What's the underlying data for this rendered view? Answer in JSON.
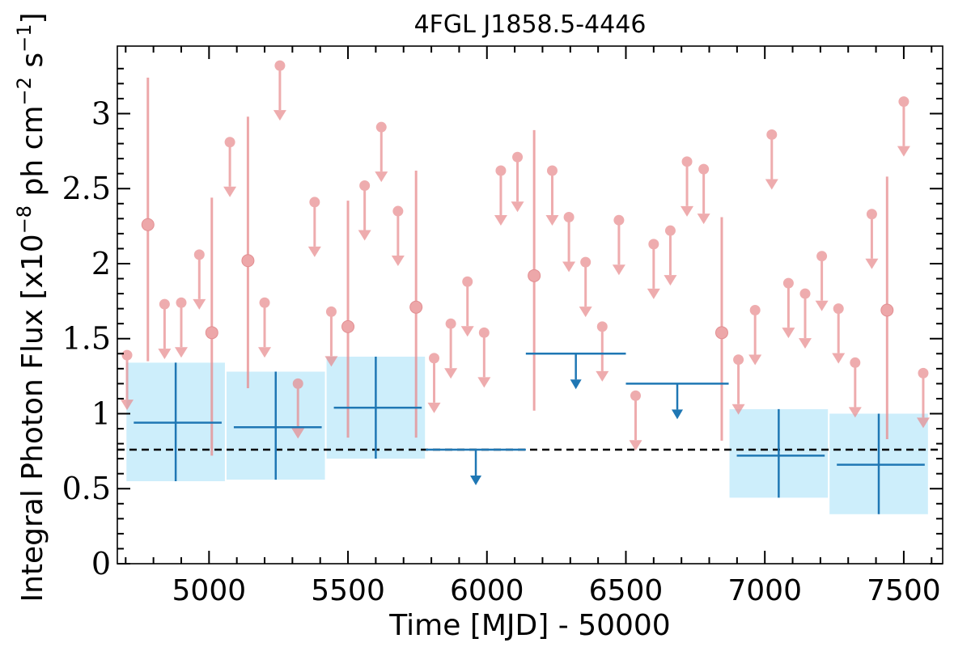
{
  "chart_data": {
    "type": "scatter",
    "title": "4FGL J1858.5-4446",
    "xlabel": "Time [MJD] - 50000",
    "ylabel": "Integral Photon Flux [x10^-8 ph cm^-2 s^-1]",
    "ylabel_parts": {
      "before": "Integral Photon Flux [x10",
      "exp1": "−8",
      "mid": " ph cm",
      "exp2": "−2",
      "mid2": " s",
      "exp3": "−1",
      "after": "]"
    },
    "xlim": [
      4670,
      7640
    ],
    "ylim": [
      0,
      3.45
    ],
    "xticks": [
      {
        "value": 5000,
        "label": "5000"
      },
      {
        "value": 5500,
        "label": "5500"
      },
      {
        "value": 6000,
        "label": "6000"
      },
      {
        "value": 6500,
        "label": "6500"
      },
      {
        "value": 7000,
        "label": "7000"
      },
      {
        "value": 7500,
        "label": "7500"
      }
    ],
    "yticks": [
      {
        "value": 0,
        "label": "0"
      },
      {
        "value": 0.5,
        "label": "0.5"
      },
      {
        "value": 1,
        "label": "1"
      },
      {
        "value": 1.5,
        "label": "1.5"
      },
      {
        "value": 2,
        "label": "2"
      },
      {
        "value": 2.5,
        "label": "2.5"
      },
      {
        "value": 3,
        "label": "3"
      }
    ],
    "grid": false,
    "mean_flux": 0.76,
    "colors": {
      "fine_bins": "#e88a8d",
      "coarse_bins": "#1f77b4",
      "band_fill": "#cdeefb",
      "mean_line": "#000000"
    },
    "fine_bins_detections": [
      {
        "x": 4780,
        "y": 2.26,
        "ylow": 1.35,
        "yhigh": 3.24
      },
      {
        "x": 5010,
        "y": 1.54,
        "ylow": 0.72,
        "yhigh": 2.44
      },
      {
        "x": 5140,
        "y": 2.02,
        "ylow": 1.17,
        "yhigh": 2.98
      },
      {
        "x": 5500,
        "y": 1.58,
        "ylow": 0.84,
        "yhigh": 2.42
      },
      {
        "x": 5745,
        "y": 1.71,
        "ylow": 0.84,
        "yhigh": 2.62
      },
      {
        "x": 6170,
        "y": 1.92,
        "ylow": 1.02,
        "yhigh": 2.89
      },
      {
        "x": 6845,
        "y": 1.54,
        "ylow": 0.82,
        "yhigh": 2.31
      },
      {
        "x": 7440,
        "y": 1.69,
        "ylow": 0.83,
        "yhigh": 2.58
      }
    ],
    "fine_bins_upper_limits": [
      {
        "x": 4705,
        "y": 1.39
      },
      {
        "x": 4840,
        "y": 1.73
      },
      {
        "x": 4900,
        "y": 1.74
      },
      {
        "x": 4965,
        "y": 2.06
      },
      {
        "x": 5075,
        "y": 2.81
      },
      {
        "x": 5200,
        "y": 1.74
      },
      {
        "x": 5255,
        "y": 3.32
      },
      {
        "x": 5320,
        "y": 1.2
      },
      {
        "x": 5380,
        "y": 2.41
      },
      {
        "x": 5440,
        "y": 1.68
      },
      {
        "x": 5560,
        "y": 2.52
      },
      {
        "x": 5620,
        "y": 2.91
      },
      {
        "x": 5680,
        "y": 2.35
      },
      {
        "x": 5810,
        "y": 1.37
      },
      {
        "x": 5870,
        "y": 1.6
      },
      {
        "x": 5930,
        "y": 1.88
      },
      {
        "x": 5990,
        "y": 1.54
      },
      {
        "x": 6050,
        "y": 2.62
      },
      {
        "x": 6110,
        "y": 2.71
      },
      {
        "x": 6235,
        "y": 2.62
      },
      {
        "x": 6295,
        "y": 2.31
      },
      {
        "x": 6355,
        "y": 2.01
      },
      {
        "x": 6415,
        "y": 1.58
      },
      {
        "x": 6475,
        "y": 2.29
      },
      {
        "x": 6535,
        "y": 1.12
      },
      {
        "x": 6600,
        "y": 2.13
      },
      {
        "x": 6660,
        "y": 2.22
      },
      {
        "x": 6720,
        "y": 2.68
      },
      {
        "x": 6780,
        "y": 2.63
      },
      {
        "x": 6905,
        "y": 1.36
      },
      {
        "x": 6965,
        "y": 1.69
      },
      {
        "x": 7025,
        "y": 2.86
      },
      {
        "x": 7085,
        "y": 1.87
      },
      {
        "x": 7145,
        "y": 1.8
      },
      {
        "x": 7205,
        "y": 2.05
      },
      {
        "x": 7265,
        "y": 1.7
      },
      {
        "x": 7325,
        "y": 1.34
      },
      {
        "x": 7385,
        "y": 2.33
      },
      {
        "x": 7500,
        "y": 3.08
      },
      {
        "x": 7570,
        "y": 1.27
      }
    ],
    "coarse_bins_detections": [
      {
        "x0": 4700,
        "x1": 5060,
        "y": 0.94,
        "ylow": 0.55,
        "yhigh": 1.34
      },
      {
        "x0": 5060,
        "x1": 5420,
        "y": 0.91,
        "ylow": 0.56,
        "yhigh": 1.28
      },
      {
        "x0": 5420,
        "x1": 5780,
        "y": 1.04,
        "ylow": 0.7,
        "yhigh": 1.38
      },
      {
        "x0": 6870,
        "x1": 7230,
        "y": 0.72,
        "ylow": 0.44,
        "yhigh": 1.03
      },
      {
        "x0": 7230,
        "x1": 7590,
        "y": 0.66,
        "ylow": 0.33,
        "yhigh": 1.0
      }
    ],
    "coarse_bins_upper_limits": [
      {
        "x0": 5780,
        "x1": 6140,
        "y": 0.76
      },
      {
        "x0": 6140,
        "x1": 6500,
        "y": 1.4
      },
      {
        "x0": 6500,
        "x1": 6870,
        "y": 1.2
      }
    ]
  }
}
